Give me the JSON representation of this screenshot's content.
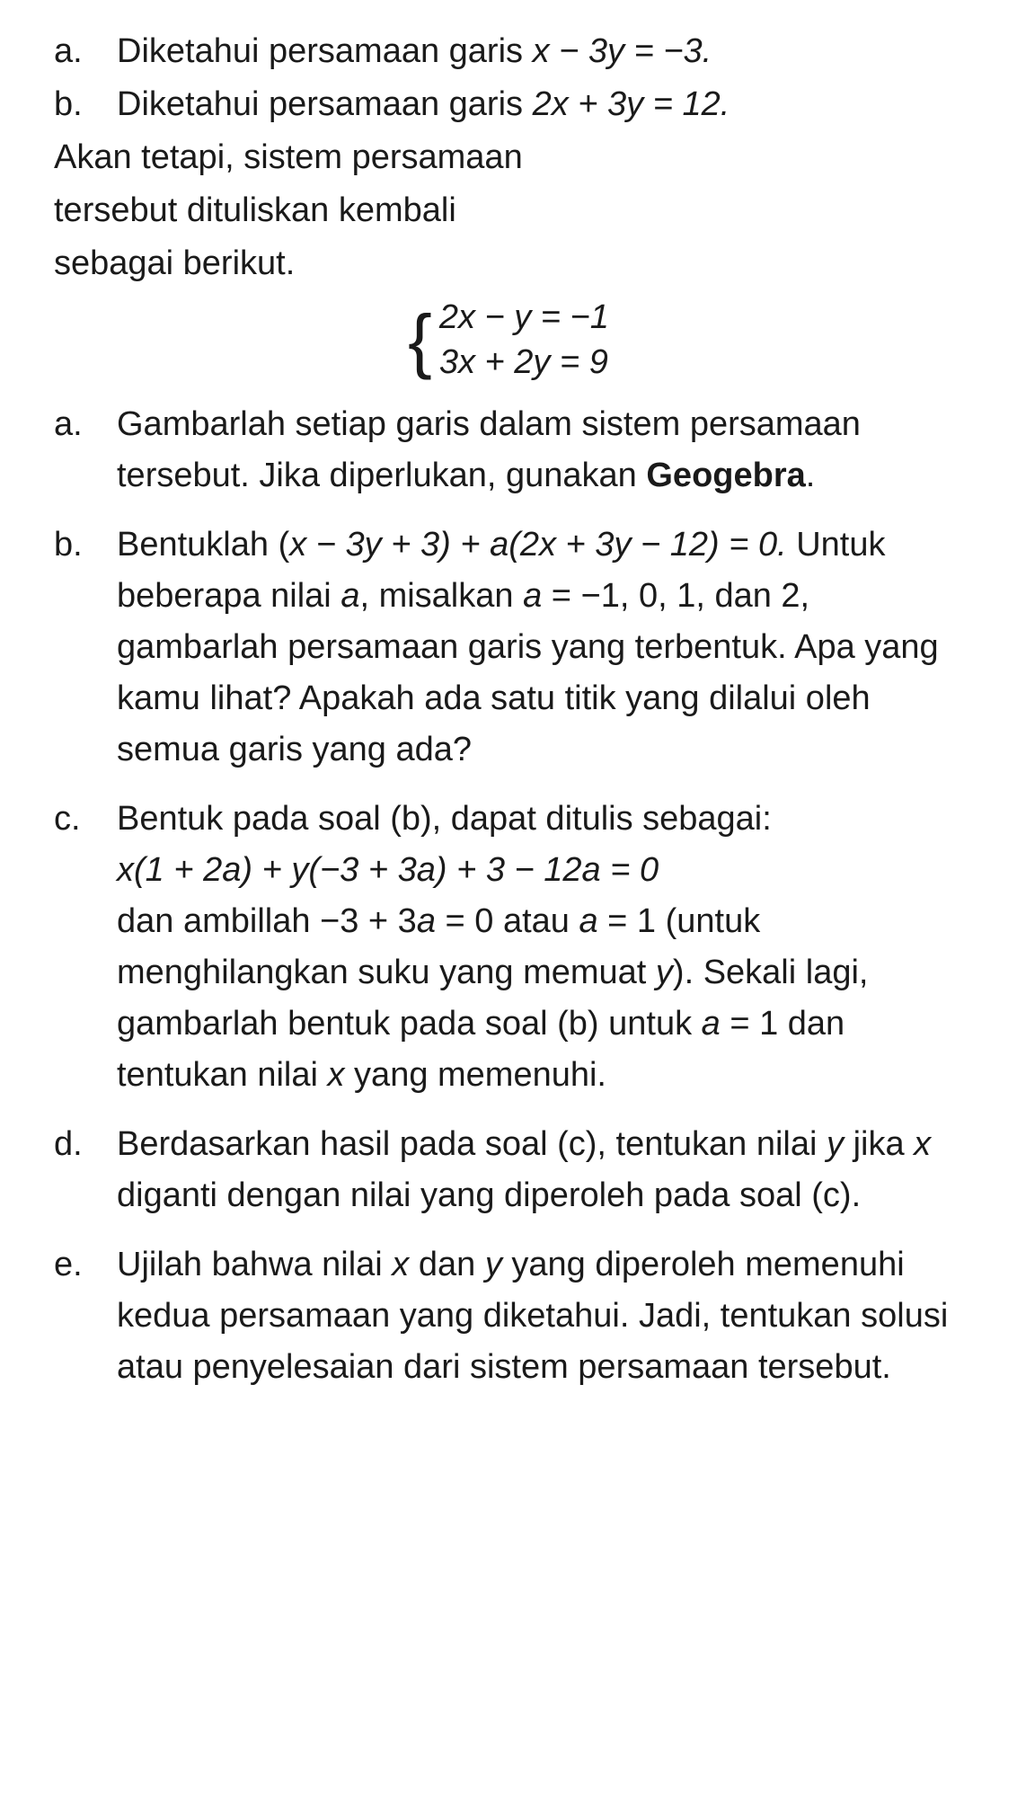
{
  "intro": {
    "a": {
      "label": "a.",
      "prefix": "Diketahui persamaan garis ",
      "eq": "x − 3y = −3."
    },
    "b": {
      "label": "b.",
      "prefix": "Diketahui persamaan garis ",
      "eq": "2x + 3y = 12."
    }
  },
  "bridge": {
    "line1": "Akan tetapi, sistem persamaan",
    "line2": "tersebut dituliskan kembali",
    "line3": "sebagai berikut."
  },
  "system": {
    "eq1": "2x − y = −1",
    "eq2": "3x + 2y = 9"
  },
  "parts": {
    "a": {
      "label": "a.",
      "t1": "Gambarlah setiap garis dalam sistem persamaan tersebut. Jika diperlukan, gunakan ",
      "bold": "Geogebra",
      "t2": "."
    },
    "b": {
      "label": "b.",
      "t1": "Bentuklah (",
      "eq1": "x − 3y + 3) + a(2x + 3y − 12) = 0.",
      "t2": " Untuk beberapa nilai ",
      "v1": "a",
      "t3": ", misalkan ",
      "v2": "a",
      "t4": " = −1, 0, 1, dan 2, gambarlah persamaan garis yang terbentuk. Apa yang kamu lihat? Apakah ada satu titik yang dilalui oleh semua garis yang ada?"
    },
    "c": {
      "label": "c.",
      "t1": "Bentuk pada soal (b), dapat ditulis sebagai:",
      "eq1": "x(1 + 2a) + y(−3 + 3a) + 3 − 12a = 0",
      "t2": "dan ambillah −3 + 3",
      "v1": "a",
      "t3": " = 0 atau ",
      "v2": "a",
      "t4": " = 1 (untuk menghilangkan suku yang memuat ",
      "v3": "y",
      "t5": "). Sekali lagi, gambarlah bentuk pada soal (b) untuk ",
      "v4": "a",
      "t6": " = 1 dan tentukan nilai ",
      "v5": "x",
      "t7": " yang memenuhi."
    },
    "d": {
      "label": "d.",
      "t1": "Berdasarkan hasil pada soal (c), tentukan nilai ",
      "v1": "y",
      "t2": " jika ",
      "v2": "x",
      "t3": " diganti dengan nilai yang diperoleh pada soal (c)."
    },
    "e": {
      "label": "e.",
      "t1": "Ujilah bahwa nilai ",
      "v1": "x",
      "t2": " dan ",
      "v2": "y",
      "t3": " yang diperoleh memenuhi kedua persamaan yang diketahui. Jadi, tentukan solusi atau penyelesaian dari sistem persamaan tersebut."
    }
  }
}
